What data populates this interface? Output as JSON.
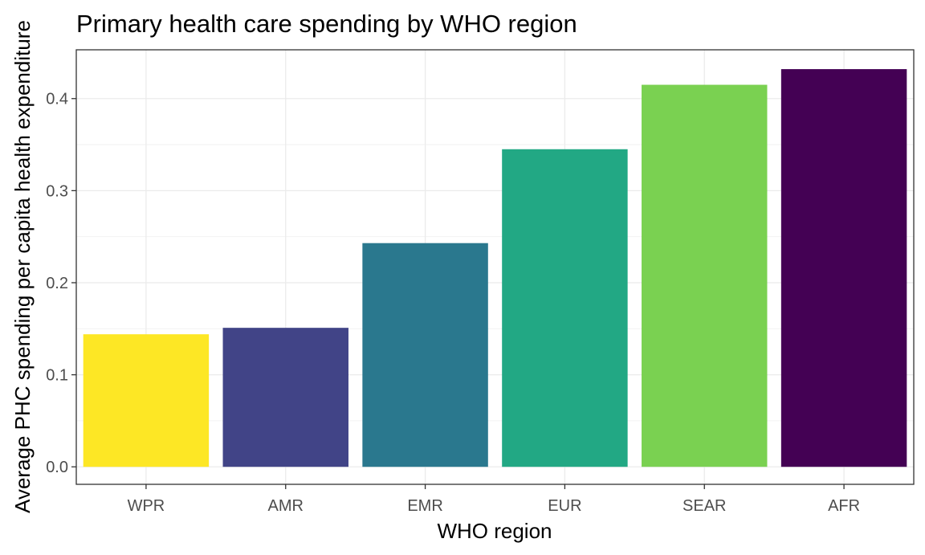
{
  "chart_data": {
    "type": "bar",
    "title": "Primary health care spending by WHO region",
    "xlabel": "WHO region",
    "ylabel": "Average PHC spending per capita health expenditure",
    "categories": [
      "WPR",
      "AMR",
      "EMR",
      "EUR",
      "SEAR",
      "AFR"
    ],
    "values": [
      0.144,
      0.151,
      0.243,
      0.345,
      0.415,
      0.432
    ],
    "colors": [
      "#FDE725",
      "#414487",
      "#2A788E",
      "#22A884",
      "#7AD151",
      "#440154"
    ],
    "ylim": [
      -0.019,
      0.453
    ],
    "yticks": [
      0.0,
      0.1,
      0.2,
      0.3,
      0.4
    ],
    "ytick_labels": [
      "0.0",
      "0.1",
      "0.2",
      "0.3",
      "0.4"
    ],
    "grid": true,
    "legend": "none"
  }
}
